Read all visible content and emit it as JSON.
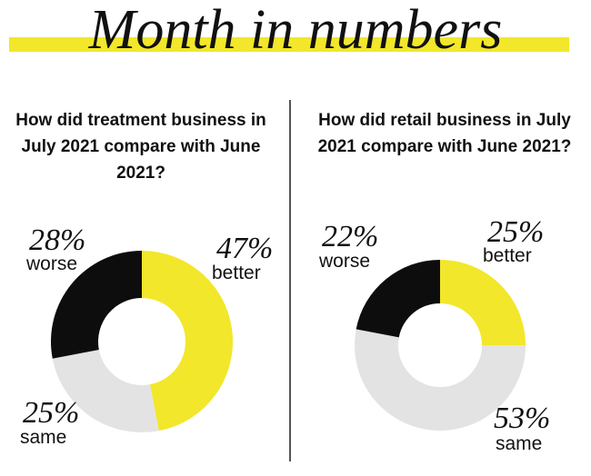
{
  "header": {
    "title": "Month in numbers",
    "band_color": "#f2e72a"
  },
  "chart_data": [
    {
      "type": "pie",
      "variant": "donut",
      "title": "How did treatment business in July 2021 compare with June 2021?",
      "slices": [
        {
          "label": "better",
          "value": 47,
          "display": "47%",
          "color": "#f2e72a"
        },
        {
          "label": "same",
          "value": 25,
          "display": "25%",
          "color": "#e3e3e3"
        },
        {
          "label": "worse",
          "value": 28,
          "display": "28%",
          "color": "#0d0d0d"
        }
      ]
    },
    {
      "type": "pie",
      "variant": "donut",
      "title": "How did retail business in July 2021 compare with June 2021?",
      "slices": [
        {
          "label": "better",
          "value": 25,
          "display": "25%",
          "color": "#f2e72a"
        },
        {
          "label": "same",
          "value": 53,
          "display": "53%",
          "color": "#e3e3e3"
        },
        {
          "label": "worse",
          "value": 22,
          "display": "22%",
          "color": "#0d0d0d"
        }
      ]
    }
  ]
}
